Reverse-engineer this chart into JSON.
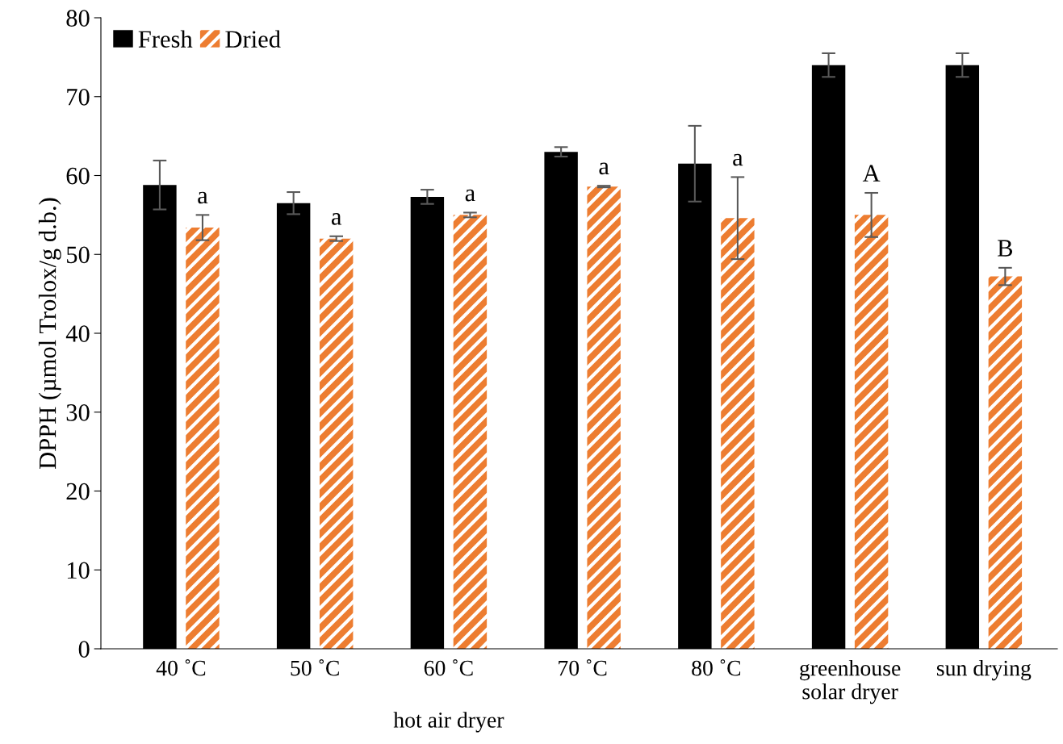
{
  "chart_data": {
    "type": "bar",
    "ylabel": "DPPH (µmol Trolox/g d.b.)",
    "categories": [
      "40 ˚C",
      "50 ˚C",
      "60 ˚C",
      "70 ˚C",
      "80 ˚C",
      "greenhouse\nsolar dryer",
      "sun drying"
    ],
    "series": [
      {
        "name": "Fresh",
        "color": "#000000",
        "values": [
          58.8,
          56.5,
          57.3,
          63.0,
          61.5,
          74.0,
          74.0
        ],
        "errors": [
          3.1,
          1.4,
          0.9,
          0.6,
          4.8,
          1.5,
          1.5
        ]
      },
      {
        "name": "Dried",
        "color": "#ed7d31",
        "values": [
          53.4,
          52.0,
          55.0,
          58.6,
          54.6,
          55.0,
          47.2
        ],
        "errors": [
          1.6,
          0.3,
          0.3,
          0.1,
          5.2,
          2.8,
          1.1
        ]
      }
    ],
    "ylim": [
      0,
      80
    ],
    "yticks": [
      0,
      10,
      20,
      30,
      40,
      50,
      60,
      70,
      80
    ],
    "grid": false,
    "legend": "top left",
    "annotations": [
      "a",
      "a",
      "a",
      "a",
      "a",
      "A",
      "B",
      "hot air dryer"
    ]
  }
}
